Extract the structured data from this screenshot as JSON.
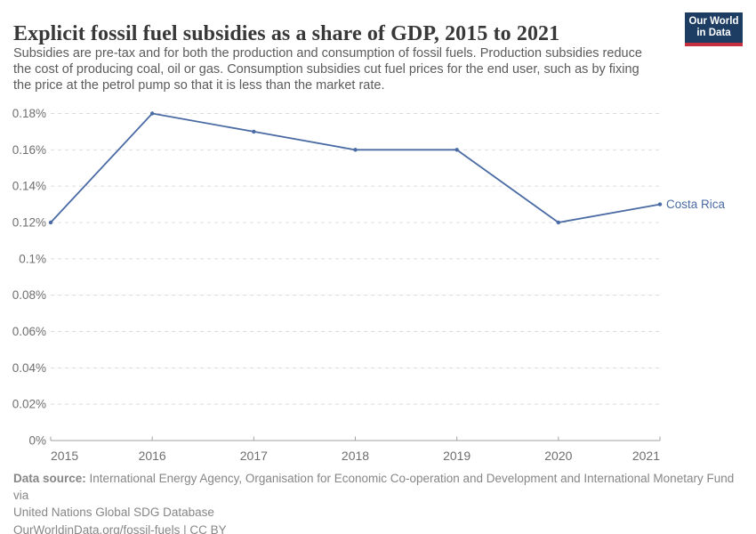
{
  "header": {
    "title": "Explicit fossil fuel subsidies as a share of GDP, 2015 to 2021",
    "subtitle_lines": [
      "Subsidies are pre-tax and for both the production and consumption of fossil fuels. Production subsidies reduce",
      "the cost of producing coal, oil or gas. Consumption subsidies cut fuel prices for the end user, such as by fixing",
      "the price at the petrol pump so that it is less than the market rate."
    ]
  },
  "logo": {
    "line1": "Our World",
    "line2": "in Data",
    "background": "#1d3d63",
    "accent_bar": "#c5303e",
    "text_color": "#ffffff"
  },
  "chart_data": {
    "type": "line",
    "title": "Explicit fossil fuel subsidies as a share of GDP, 2015 to 2021",
    "x": [
      2015,
      2016,
      2017,
      2018,
      2019,
      2020,
      2021
    ],
    "xtick_labels": [
      "2015",
      "2016",
      "2017",
      "2018",
      "2019",
      "2020",
      "2021"
    ],
    "series": [
      {
        "name": "Costa Rica",
        "values": [
          0.12,
          0.18,
          0.17,
          0.16,
          0.16,
          0.12,
          0.13
        ]
      }
    ],
    "unit": "%",
    "xlabel": "",
    "ylabel": "",
    "ylim": [
      0,
      0.18
    ],
    "yticks": [
      {
        "value": 0,
        "label": "0%"
      },
      {
        "value": 0.02,
        "label": "0.02%"
      },
      {
        "value": 0.04,
        "label": "0.04%"
      },
      {
        "value": 0.06,
        "label": "0.06%"
      },
      {
        "value": 0.08,
        "label": "0.08%"
      },
      {
        "value": 0.1,
        "label": "0.1%"
      },
      {
        "value": 0.12,
        "label": "0.12%"
      },
      {
        "value": 0.14,
        "label": "0.14%"
      },
      {
        "value": 0.16,
        "label": "0.16%"
      },
      {
        "value": 0.18,
        "label": "0.18%"
      }
    ],
    "grid": "horizontal-dashed",
    "legend_position": "line-end-label",
    "colors": {
      "line": "#4a6ba4",
      "grid": "#dcdcdc",
      "axis": "#a1a1a1",
      "tick_text": "#6e6e6e"
    }
  },
  "footer": {
    "datasource_label": "Data source:",
    "datasource_line1": "International Energy Agency, Organisation for Economic Co-operation and Development and International Monetary Fund via",
    "datasource_line2": "United Nations Global SDG Database",
    "license_line": "OurWorldinData.org/fossil-fuels | CC BY"
  }
}
